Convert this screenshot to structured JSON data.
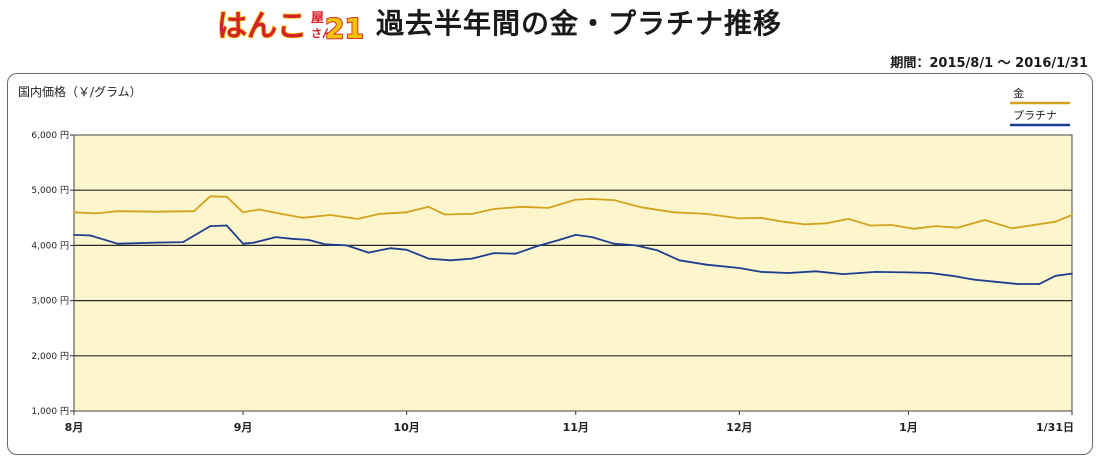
{
  "header": {
    "logo_text": "はんこ屋さん21",
    "title": "過去半年間の金・プラチナ推移",
    "period": "期間：2015/8/1 〜 2016/1/31"
  },
  "colors": {
    "gold": "#d4a21f",
    "platinum": "#1d3d8f",
    "plot_bg": "#fdf6cc",
    "logo_red": "#d3222a",
    "logo_yellow": "#f6c10a"
  },
  "chart_data": {
    "type": "line",
    "ylabel": "国内価格（￥/グラム）",
    "ylim": [
      1000,
      6000
    ],
    "y_ticks": [
      {
        "value": 1000,
        "label": "1,000 円"
      },
      {
        "value": 2000,
        "label": "2,000 円"
      },
      {
        "value": 3000,
        "label": "3,000 円"
      },
      {
        "value": 4000,
        "label": "4,000 円"
      },
      {
        "value": 5000,
        "label": "5,000 円"
      },
      {
        "value": 6000,
        "label": "6,000 円"
      }
    ],
    "x_ticks": [
      {
        "date": "2015-08-01",
        "label": "8月"
      },
      {
        "date": "2015-09-01",
        "label": "9月"
      },
      {
        "date": "2015-10-01",
        "label": "10月"
      },
      {
        "date": "2015-11-01",
        "label": "11月"
      },
      {
        "date": "2015-12-01",
        "label": "12月"
      },
      {
        "date": "2016-01-01",
        "label": "1月"
      },
      {
        "date": "2016-01-31",
        "label": "1/31日"
      }
    ],
    "xlim": [
      "2015-08-01",
      "2016-01-31"
    ],
    "grid": true,
    "legend_position": "top-right",
    "series": [
      {
        "name": "金",
        "color": "#d4a21f",
        "x": [
          "2015-08-01",
          "2015-08-05",
          "2015-08-09",
          "2015-08-16",
          "2015-08-23",
          "2015-08-26",
          "2015-08-29",
          "2015-09-01",
          "2015-09-04",
          "2015-09-08",
          "2015-09-12",
          "2015-09-17",
          "2015-09-22",
          "2015-09-26",
          "2015-10-01",
          "2015-10-05",
          "2015-10-08",
          "2015-10-13",
          "2015-10-17",
          "2015-10-22",
          "2015-10-27",
          "2015-11-01",
          "2015-11-04",
          "2015-11-08",
          "2015-11-13",
          "2015-11-19",
          "2015-11-25",
          "2015-12-01",
          "2015-12-05",
          "2015-12-09",
          "2015-12-13",
          "2015-12-17",
          "2015-12-21",
          "2015-12-25",
          "2015-12-29",
          "2016-01-02",
          "2016-01-06",
          "2016-01-10",
          "2016-01-15",
          "2016-01-20",
          "2016-01-24",
          "2016-01-28",
          "2016-01-31"
        ],
        "values": [
          4600,
          4580,
          4620,
          4610,
          4620,
          4890,
          4880,
          4600,
          4650,
          4570,
          4500,
          4550,
          4480,
          4570,
          4600,
          4700,
          4560,
          4570,
          4660,
          4700,
          4680,
          4830,
          4840,
          4820,
          4690,
          4600,
          4570,
          4490,
          4500,
          4430,
          4380,
          4400,
          4480,
          4360,
          4370,
          4300,
          4350,
          4320,
          4460,
          4310,
          4370,
          4430,
          4550
        ]
      },
      {
        "name": "プラチナ",
        "color": "#1d3d8f",
        "x": [
          "2015-08-01",
          "2015-08-04",
          "2015-08-09",
          "2015-08-16",
          "2015-08-21",
          "2015-08-26",
          "2015-08-29",
          "2015-09-01",
          "2015-09-03",
          "2015-09-07",
          "2015-09-10",
          "2015-09-13",
          "2015-09-16",
          "2015-09-20",
          "2015-09-24",
          "2015-09-28",
          "2015-10-01",
          "2015-10-05",
          "2015-10-09",
          "2015-10-13",
          "2015-10-17",
          "2015-10-21",
          "2015-10-25",
          "2015-10-29",
          "2015-11-01",
          "2015-11-04",
          "2015-11-08",
          "2015-11-12",
          "2015-11-16",
          "2015-11-20",
          "2015-11-25",
          "2015-12-01",
          "2015-12-05",
          "2015-12-10",
          "2015-12-15",
          "2015-12-20",
          "2015-12-26",
          "2016-01-01",
          "2016-01-05",
          "2016-01-09",
          "2016-01-13",
          "2016-01-17",
          "2016-01-21",
          "2016-01-25",
          "2016-01-28",
          "2016-01-31"
        ],
        "values": [
          4190,
          4180,
          4030,
          4050,
          4060,
          4350,
          4360,
          4030,
          4050,
          4150,
          4120,
          4100,
          4020,
          4000,
          3870,
          3950,
          3920,
          3760,
          3730,
          3760,
          3860,
          3850,
          3990,
          4100,
          4190,
          4150,
          4030,
          4000,
          3910,
          3730,
          3650,
          3590,
          3520,
          3500,
          3530,
          3480,
          3520,
          3510,
          3500,
          3450,
          3380,
          3340,
          3300,
          3300,
          3450,
          3490
        ]
      }
    ]
  }
}
